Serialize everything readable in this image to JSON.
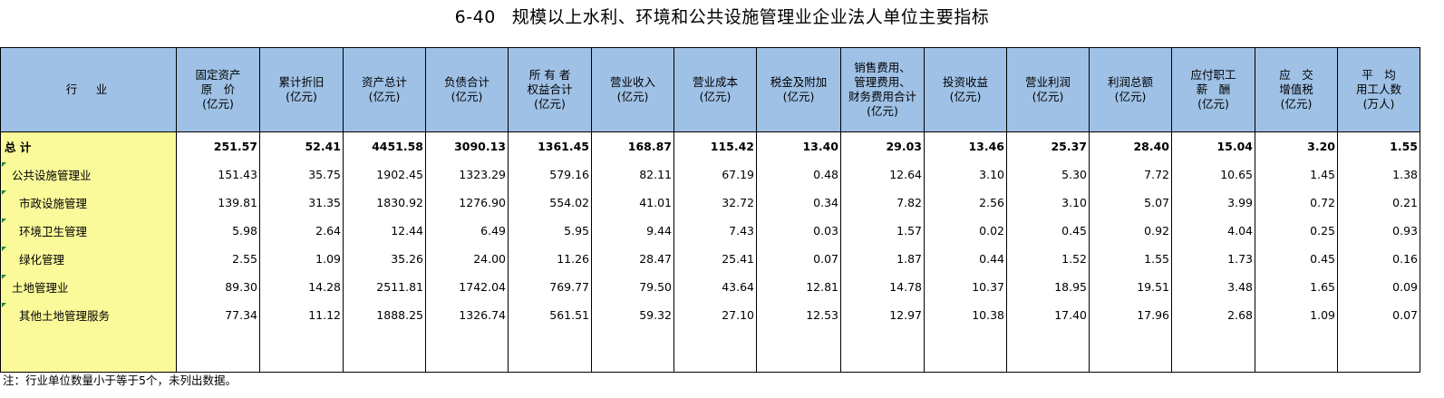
{
  "title": {
    "number": "6-40",
    "text": "规模以上水利、环境和公共设施管理业企业法人单位主要指标"
  },
  "headers": [
    {
      "lines": [
        "行　业"
      ]
    },
    {
      "lines": [
        "固定资产",
        "原　价",
        "(亿元)"
      ]
    },
    {
      "lines": [
        "累计折旧",
        "(亿元)"
      ]
    },
    {
      "lines": [
        "资产总计",
        "(亿元)"
      ]
    },
    {
      "lines": [
        "负债合计",
        "(亿元)"
      ]
    },
    {
      "lines": [
        "所 有 者",
        "权益合计",
        "(亿元)"
      ]
    },
    {
      "lines": [
        "营业收入",
        "(亿元)"
      ]
    },
    {
      "lines": [
        "营业成本",
        "(亿元)"
      ]
    },
    {
      "lines": [
        "税金及附加",
        "(亿元)"
      ]
    },
    {
      "lines": [
        "销售费用、",
        "管理费用、",
        "财务费用合计",
        "(亿元)"
      ]
    },
    {
      "lines": [
        "投资收益",
        "(亿元)"
      ]
    },
    {
      "lines": [
        "营业利润",
        "(亿元)"
      ]
    },
    {
      "lines": [
        "利润总额",
        "(亿元)"
      ]
    },
    {
      "lines": [
        "应付职工",
        "薪　酬",
        "(亿元)"
      ]
    },
    {
      "lines": [
        "应　交",
        "增值税",
        "(亿元)"
      ]
    },
    {
      "lines": [
        "平　均",
        "用工人数",
        "(万人)"
      ]
    }
  ],
  "rows": [
    {
      "label": "总  计",
      "level": 1,
      "bold": true,
      "values": [
        "251.57",
        "52.41",
        "4451.58",
        "3090.13",
        "1361.45",
        "168.87",
        "115.42",
        "13.40",
        "29.03",
        "13.46",
        "25.37",
        "28.40",
        "15.04",
        "3.20",
        "1.55"
      ]
    },
    {
      "label": "公共设施管理业",
      "level": 2,
      "bold": false,
      "values": [
        "151.43",
        "35.75",
        "1902.45",
        "1323.29",
        "579.16",
        "82.11",
        "67.19",
        "0.48",
        "12.64",
        "3.10",
        "5.30",
        "7.72",
        "10.65",
        "1.45",
        "1.38"
      ]
    },
    {
      "label": "市政设施管理",
      "level": 3,
      "bold": false,
      "values": [
        "139.81",
        "31.35",
        "1830.92",
        "1276.90",
        "554.02",
        "41.01",
        "32.72",
        "0.34",
        "7.82",
        "2.56",
        "3.10",
        "5.07",
        "3.99",
        "0.72",
        "0.21"
      ]
    },
    {
      "label": "环境卫生管理",
      "level": 3,
      "bold": false,
      "values": [
        "5.98",
        "2.64",
        "12.44",
        "6.49",
        "5.95",
        "9.44",
        "7.43",
        "0.03",
        "1.57",
        "0.02",
        "0.45",
        "0.92",
        "4.04",
        "0.25",
        "0.93"
      ]
    },
    {
      "label": "绿化管理",
      "level": 3,
      "bold": false,
      "values": [
        "2.55",
        "1.09",
        "35.26",
        "24.00",
        "11.26",
        "28.47",
        "25.41",
        "0.07",
        "1.87",
        "0.44",
        "1.52",
        "1.55",
        "1.73",
        "0.45",
        "0.16"
      ]
    },
    {
      "label": "土地管理业",
      "level": 2,
      "bold": false,
      "values": [
        "89.30",
        "14.28",
        "2511.81",
        "1742.04",
        "769.77",
        "79.50",
        "43.64",
        "12.81",
        "14.78",
        "10.37",
        "18.95",
        "19.51",
        "3.48",
        "1.65",
        "0.09"
      ]
    },
    {
      "label": "其他土地管理服务",
      "level": 3,
      "bold": false,
      "values": [
        "77.34",
        "11.12",
        "1888.25",
        "1326.74",
        "561.51",
        "59.32",
        "27.10",
        "12.53",
        "12.97",
        "10.38",
        "17.40",
        "17.96",
        "2.68",
        "1.09",
        "0.07"
      ]
    }
  ],
  "note": "注：行业单位数量小于等于5个，未列出数据。",
  "colors": {
    "header_bg": "#9fc1e6",
    "label_bg": "#fbfa9a",
    "marker": "#1a8a3a"
  }
}
